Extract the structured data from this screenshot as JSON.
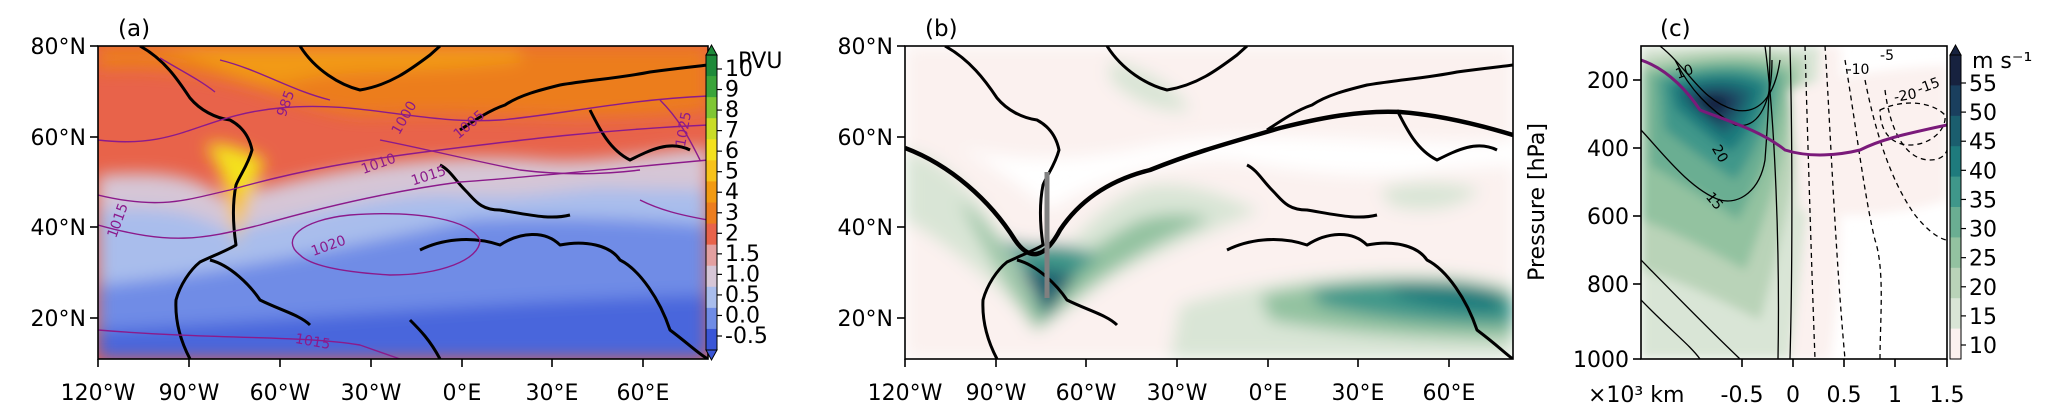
{
  "panels": [
    {
      "label": "(a)",
      "colorbar": {
        "unit": "PVU",
        "ticks": [
          "10",
          "9",
          "8",
          "7",
          "6",
          "5",
          "4",
          "3",
          "2",
          "1.5",
          "1.0",
          "0.5",
          "0.0",
          "-0.5"
        ]
      },
      "isobar_labels": [
        "985",
        "1000",
        "1005",
        "1010",
        "1015",
        "1020",
        "1025",
        "1015",
        "1015"
      ]
    },
    {
      "label": "(b)"
    },
    {
      "label": "(c)",
      "colorbar": {
        "unit": "m s⁻¹",
        "ticks": [
          "55",
          "50",
          "45",
          "40",
          "35",
          "30",
          "25",
          "20",
          "15",
          "10"
        ]
      },
      "contour_labels": [
        "10",
        "20",
        "15",
        "-5",
        "-10",
        "-15",
        "-20"
      ]
    }
  ],
  "map_axes": {
    "y_ticks": [
      "80°N",
      "60°N",
      "40°N",
      "20°N"
    ],
    "x_ticks": [
      "120°W",
      "90°W",
      "60°W",
      "30°W",
      "0°E",
      "30°E",
      "60°E"
    ]
  },
  "section_axes": {
    "ylabel": "Pressure [hPa]",
    "y_ticks": [
      "200",
      "400",
      "600",
      "800",
      "1000"
    ],
    "x_prefix": "×10³ km",
    "x_ticks": [
      "-0.5",
      "0",
      "0.5",
      "1",
      "1.5"
    ]
  },
  "colors": {
    "pv_palette": [
      "#3a56d6",
      "#6f8ce6",
      "#a9bdec",
      "#d6c6d6",
      "#e3a0a0",
      "#e8634a",
      "#ec7d1f",
      "#f29a12",
      "#f7c21a",
      "#f4e11e",
      "#c9dc27",
      "#7fc634",
      "#3aa43a",
      "#1e8a3a"
    ],
    "wind_palette": [
      "#fbf1ef",
      "#d9e5d6",
      "#b9d3b8",
      "#93c2a0",
      "#6aae92",
      "#3f978a",
      "#1f7b7d",
      "#1b5e6e",
      "#1a3f5e",
      "#17223f"
    ],
    "isobar": "#8b1a8b",
    "tropopause": "#7a1a7a",
    "section_line": "#808080"
  }
}
